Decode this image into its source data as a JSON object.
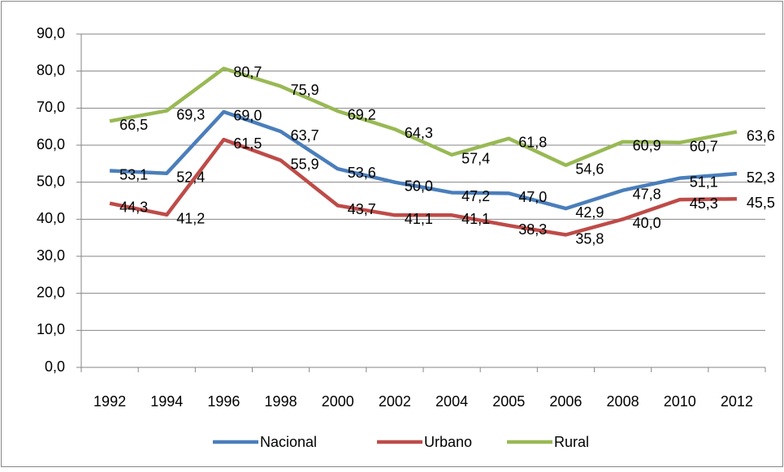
{
  "chart_data": {
    "type": "line",
    "categories": [
      "1992",
      "1994",
      "1996",
      "1998",
      "2000",
      "2002",
      "2004",
      "2005",
      "2006",
      "2008",
      "2010",
      "2012"
    ],
    "series": [
      {
        "name": "Nacional",
        "color": "#4a7ebb",
        "values": [
          53.1,
          52.4,
          69.0,
          63.7,
          53.6,
          50.0,
          47.2,
          47.0,
          42.9,
          47.8,
          51.1,
          52.3
        ],
        "value_labels": [
          "53,1",
          "52,4",
          "69,0",
          "63,7",
          "53,6",
          "50,0",
          "47,2",
          "47,0",
          "42,9",
          "47,8",
          "51,1",
          "52,3"
        ]
      },
      {
        "name": "Urbano",
        "color": "#be4b48",
        "values": [
          44.3,
          41.2,
          61.5,
          55.9,
          43.7,
          41.1,
          41.1,
          38.3,
          35.8,
          40.0,
          45.3,
          45.5
        ],
        "value_labels": [
          "44,3",
          "41,2",
          "61,5",
          "55,9",
          "43,7",
          "41,1",
          "41,1",
          "38,3",
          "35,8",
          "40,0",
          "45,3",
          "45,5"
        ]
      },
      {
        "name": "Rural",
        "color": "#98b954",
        "values": [
          66.5,
          69.3,
          80.7,
          75.9,
          69.2,
          64.3,
          57.4,
          61.8,
          54.6,
          60.9,
          60.7,
          63.6
        ],
        "value_labels": [
          "66,5",
          "69,3",
          "80,7",
          "75,9",
          "69,2",
          "64,3",
          "57,4",
          "61,8",
          "54,6",
          "60,9",
          "60,7",
          "63,6"
        ]
      }
    ],
    "ylim": [
      0,
      90
    ],
    "yticks": [
      {
        "value": 0,
        "label": "0,0"
      },
      {
        "value": 10,
        "label": "10,0"
      },
      {
        "value": 20,
        "label": "20,0"
      },
      {
        "value": 30,
        "label": "30,0"
      },
      {
        "value": 40,
        "label": "40,0"
      },
      {
        "value": 50,
        "label": "50,0"
      },
      {
        "value": 60,
        "label": "60,0"
      },
      {
        "value": 70,
        "label": "70,0"
      },
      {
        "value": 80,
        "label": "80,0"
      },
      {
        "value": 90,
        "label": "90,0"
      }
    ],
    "grid": true,
    "legend": "bottom"
  }
}
